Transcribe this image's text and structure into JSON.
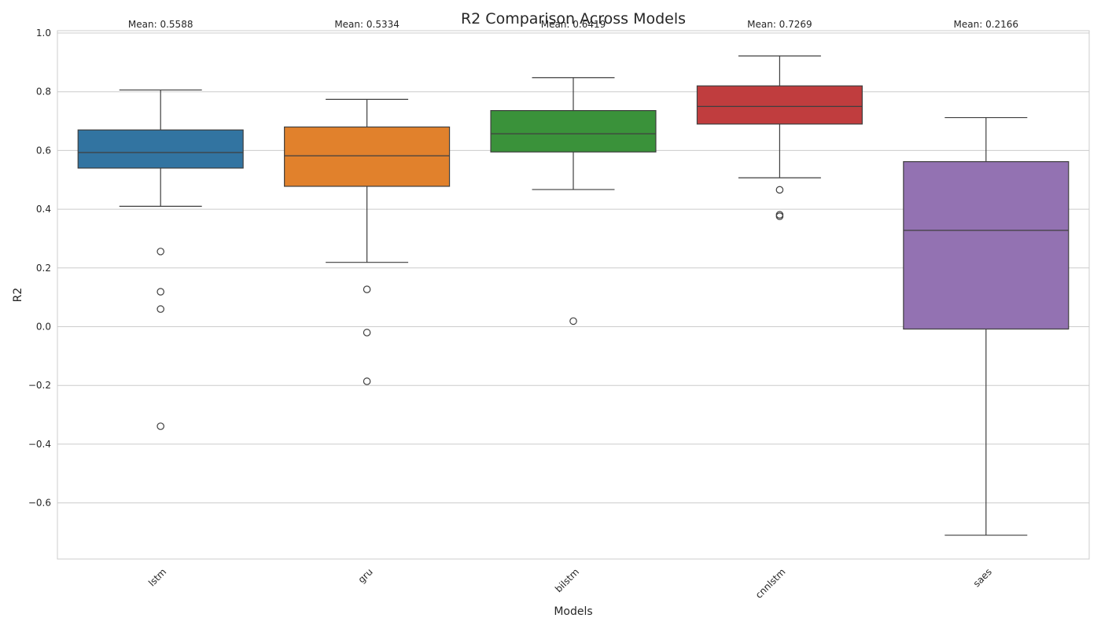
{
  "chart_data": {
    "type": "box",
    "title": "R2 Comparison Across Models",
    "xlabel": "Models",
    "ylabel": "R2",
    "ylim": [
      -0.8,
      1.0
    ],
    "yticks": [
      -0.6,
      -0.4,
      -0.2,
      0.0,
      0.2,
      0.4,
      0.6,
      0.8,
      1.0
    ],
    "ytick_labels": [
      "−0.6",
      "−0.4",
      "−0.2",
      "0.0",
      "0.2",
      "0.4",
      "0.6",
      "0.8",
      "1.0"
    ],
    "grid": true,
    "categories": [
      "lstm",
      "gru",
      "bilstm",
      "cnnlstm",
      "saes"
    ],
    "boxes": [
      {
        "name": "lstm",
        "color": "#3274a1",
        "whisker_low": 0.41,
        "q1": 0.54,
        "median": 0.593,
        "q3": 0.67,
        "whisker_high": 0.806,
        "outliers": [
          0.256,
          0.119,
          0.06,
          -0.339
        ],
        "mean_label": "Mean: 0.5588"
      },
      {
        "name": "gru",
        "color": "#e1812c",
        "whisker_low": 0.219,
        "q1": 0.478,
        "median": 0.582,
        "q3": 0.68,
        "whisker_high": 0.774,
        "outliers": [
          0.127,
          -0.02,
          -0.186
        ],
        "mean_label": "Mean: 0.5334"
      },
      {
        "name": "bilstm",
        "color": "#3a923a",
        "whisker_low": 0.467,
        "q1": 0.595,
        "median": 0.657,
        "q3": 0.736,
        "whisker_high": 0.848,
        "outliers": [
          0.019
        ],
        "mean_label": "Mean: 0.6419"
      },
      {
        "name": "cnnlstm",
        "color": "#c03d3e",
        "whisker_low": 0.507,
        "q1": 0.69,
        "median": 0.75,
        "q3": 0.82,
        "whisker_high": 0.922,
        "outliers": [
          0.466,
          0.381,
          0.376
        ],
        "mean_label": "Mean: 0.7269"
      },
      {
        "name": "saes",
        "color": "#9372b2",
        "whisker_low": -0.71,
        "q1": -0.008,
        "median": 0.328,
        "q3": 0.562,
        "whisker_high": 0.712,
        "outliers": [],
        "mean_label": "Mean: 0.2166"
      }
    ]
  }
}
